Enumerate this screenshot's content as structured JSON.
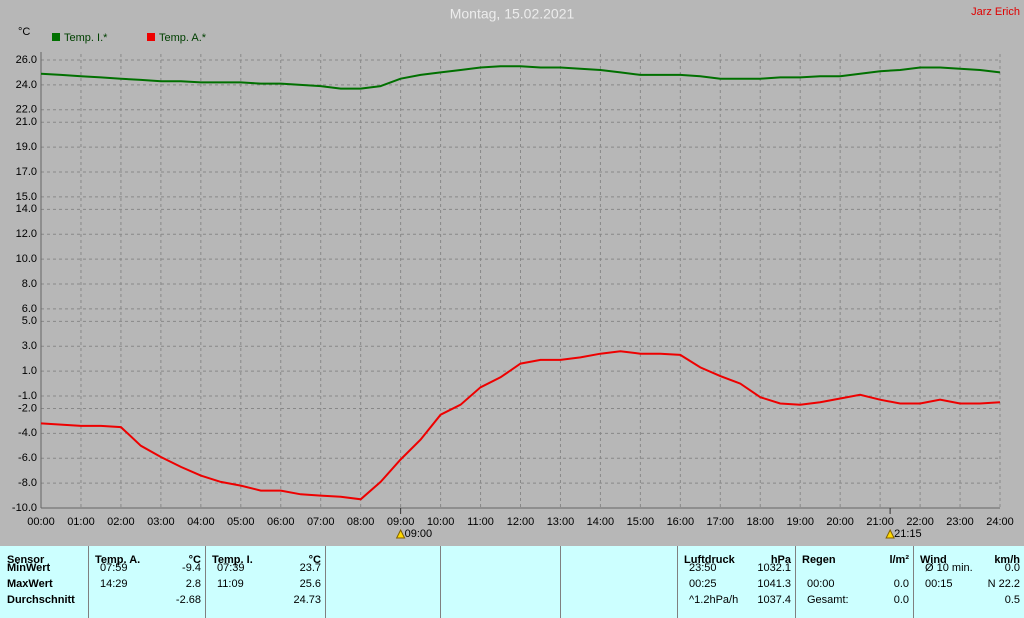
{
  "chart_data": {
    "type": "line",
    "title": "Montag, 15.02.2021",
    "author": "Jarz Erich",
    "y_label": "°C",
    "x": [
      0,
      0.5,
      1,
      1.5,
      2,
      2.5,
      3,
      3.5,
      4,
      4.5,
      5,
      5.5,
      6,
      6.5,
      7,
      7.5,
      8,
      8.5,
      9,
      9.5,
      10,
      10.5,
      11,
      11.5,
      12,
      12.5,
      13,
      13.5,
      14,
      14.5,
      15,
      15.5,
      16,
      16.5,
      17,
      17.5,
      18,
      18.5,
      19,
      19.5,
      20,
      20.5,
      21,
      21.5,
      22,
      22.5,
      23,
      23.5,
      24
    ],
    "series": [
      {
        "name": "Temp. I.*",
        "color": "#007000",
        "values": [
          24.9,
          24.8,
          24.7,
          24.6,
          24.5,
          24.4,
          24.3,
          24.3,
          24.2,
          24.2,
          24.2,
          24.1,
          24.1,
          24.0,
          23.9,
          23.7,
          23.7,
          23.9,
          24.5,
          24.8,
          25.0,
          25.2,
          25.4,
          25.5,
          25.5,
          25.4,
          25.4,
          25.3,
          25.2,
          25.0,
          24.8,
          24.8,
          24.8,
          24.7,
          24.5,
          24.5,
          24.5,
          24.6,
          24.6,
          24.7,
          24.7,
          24.9,
          25.1,
          25.2,
          25.4,
          25.4,
          25.3,
          25.2,
          25.0
        ]
      },
      {
        "name": "Temp. A.*",
        "color": "#ee0000",
        "values": [
          -3.2,
          -3.3,
          -3.4,
          -3.4,
          -3.5,
          -5.0,
          -5.9,
          -6.7,
          -7.4,
          -7.9,
          -8.2,
          -8.6,
          -8.6,
          -8.9,
          -9.0,
          -9.1,
          -9.3,
          -7.9,
          -6.1,
          -4.5,
          -2.5,
          -1.7,
          -0.3,
          0.5,
          1.6,
          1.9,
          1.9,
          2.1,
          2.4,
          2.6,
          2.4,
          2.4,
          2.3,
          1.3,
          0.6,
          0.0,
          -1.1,
          -1.6,
          -1.7,
          -1.5,
          -1.2,
          -0.9,
          -1.3,
          -1.6,
          -1.6,
          -1.3,
          -1.6,
          -1.6,
          -1.5
        ]
      }
    ],
    "xlim": [
      0,
      24
    ],
    "xticks": [
      {
        "value": 0,
        "label": "00:00"
      },
      {
        "value": 1,
        "label": "01:00"
      },
      {
        "value": 2,
        "label": "02:00"
      },
      {
        "value": 3,
        "label": "03:00"
      },
      {
        "value": 4,
        "label": "04:00"
      },
      {
        "value": 5,
        "label": "05:00"
      },
      {
        "value": 6,
        "label": "06:00"
      },
      {
        "value": 7,
        "label": "07:00"
      },
      {
        "value": 8,
        "label": "08:00"
      },
      {
        "value": 9,
        "label": "09:00"
      },
      {
        "value": 10,
        "label": "10:00"
      },
      {
        "value": 11,
        "label": "11:00"
      },
      {
        "value": 12,
        "label": "12:00"
      },
      {
        "value": 13,
        "label": "13:00"
      },
      {
        "value": 14,
        "label": "14:00"
      },
      {
        "value": 15,
        "label": "15:00"
      },
      {
        "value": 16,
        "label": "16:00"
      },
      {
        "value": 17,
        "label": "17:00"
      },
      {
        "value": 18,
        "label": "18:00"
      },
      {
        "value": 19,
        "label": "19:00"
      },
      {
        "value": 20,
        "label": "20:00"
      },
      {
        "value": 21,
        "label": "21:00"
      },
      {
        "value": 22,
        "label": "22:00"
      },
      {
        "value": 23,
        "label": "23:00"
      },
      {
        "value": 24,
        "label": "24:00"
      }
    ],
    "ylim": [
      -10,
      26
    ],
    "yticks": [
      {
        "value": 26,
        "label": "26.0"
      },
      {
        "value": 24,
        "label": "24.0"
      },
      {
        "value": 22,
        "label": "22.0"
      },
      {
        "value": 21,
        "label": "21.0"
      },
      {
        "value": 19,
        "label": "19.0"
      },
      {
        "value": 17,
        "label": "17.0"
      },
      {
        "value": 15,
        "label": "15.0"
      },
      {
        "value": 14,
        "label": "14.0"
      },
      {
        "value": 12,
        "label": "12.0"
      },
      {
        "value": 10,
        "label": "10.0"
      },
      {
        "value": 8,
        "label": "8.0"
      },
      {
        "value": 6,
        "label": "6.0"
      },
      {
        "value": 5,
        "label": "5.0"
      },
      {
        "value": 3,
        "label": "3.0"
      },
      {
        "value": 1,
        "label": "1.0"
      },
      {
        "value": -1,
        "label": "-1.0"
      },
      {
        "value": -2,
        "label": "-2.0"
      },
      {
        "value": -4,
        "label": "-4.0"
      },
      {
        "value": -6,
        "label": "-6.0"
      },
      {
        "value": -8,
        "label": "-8.0"
      },
      {
        "value": -10,
        "label": "-10.0"
      }
    ],
    "grid": true,
    "annotations": [
      {
        "x": 9,
        "label": "09:00"
      },
      {
        "x": 21.25,
        "label": "21:15"
      }
    ]
  },
  "table": {
    "row_labels": [
      "MinWert",
      "MaxWert",
      "Durchschnitt"
    ],
    "first_header": "Sensor",
    "groups": [
      {
        "header": [
          "Temp. A.",
          "°C"
        ],
        "rows": [
          [
            "07:59",
            "-9.4"
          ],
          [
            "14:29",
            "2.8"
          ],
          [
            null,
            "-2.68"
          ]
        ]
      },
      {
        "header": [
          "Temp. I.",
          "°C"
        ],
        "rows": [
          [
            "07:39",
            "23.7"
          ],
          [
            "11:09",
            "25.6"
          ],
          [
            null,
            "24.73"
          ]
        ]
      },
      {
        "header": [
          "Luftdruck",
          "hPa"
        ],
        "rows": [
          [
            "23:50",
            "1032.1"
          ],
          [
            "00:25",
            "1041.3"
          ],
          [
            "^1.2hPa/h",
            "1037.4"
          ]
        ]
      },
      {
        "header": [
          "Regen",
          "l/m²"
        ],
        "rows": [
          [
            null,
            null
          ],
          [
            "00:00",
            "0.0"
          ],
          [
            "Gesamt:",
            "0.0"
          ]
        ]
      },
      {
        "header": [
          "Wind",
          "km/h"
        ],
        "rows": [
          [
            "Ø 10 min.",
            "0.0"
          ],
          [
            "00:15",
            "N 22.2"
          ],
          [
            null,
            "0.5"
          ]
        ]
      }
    ]
  }
}
